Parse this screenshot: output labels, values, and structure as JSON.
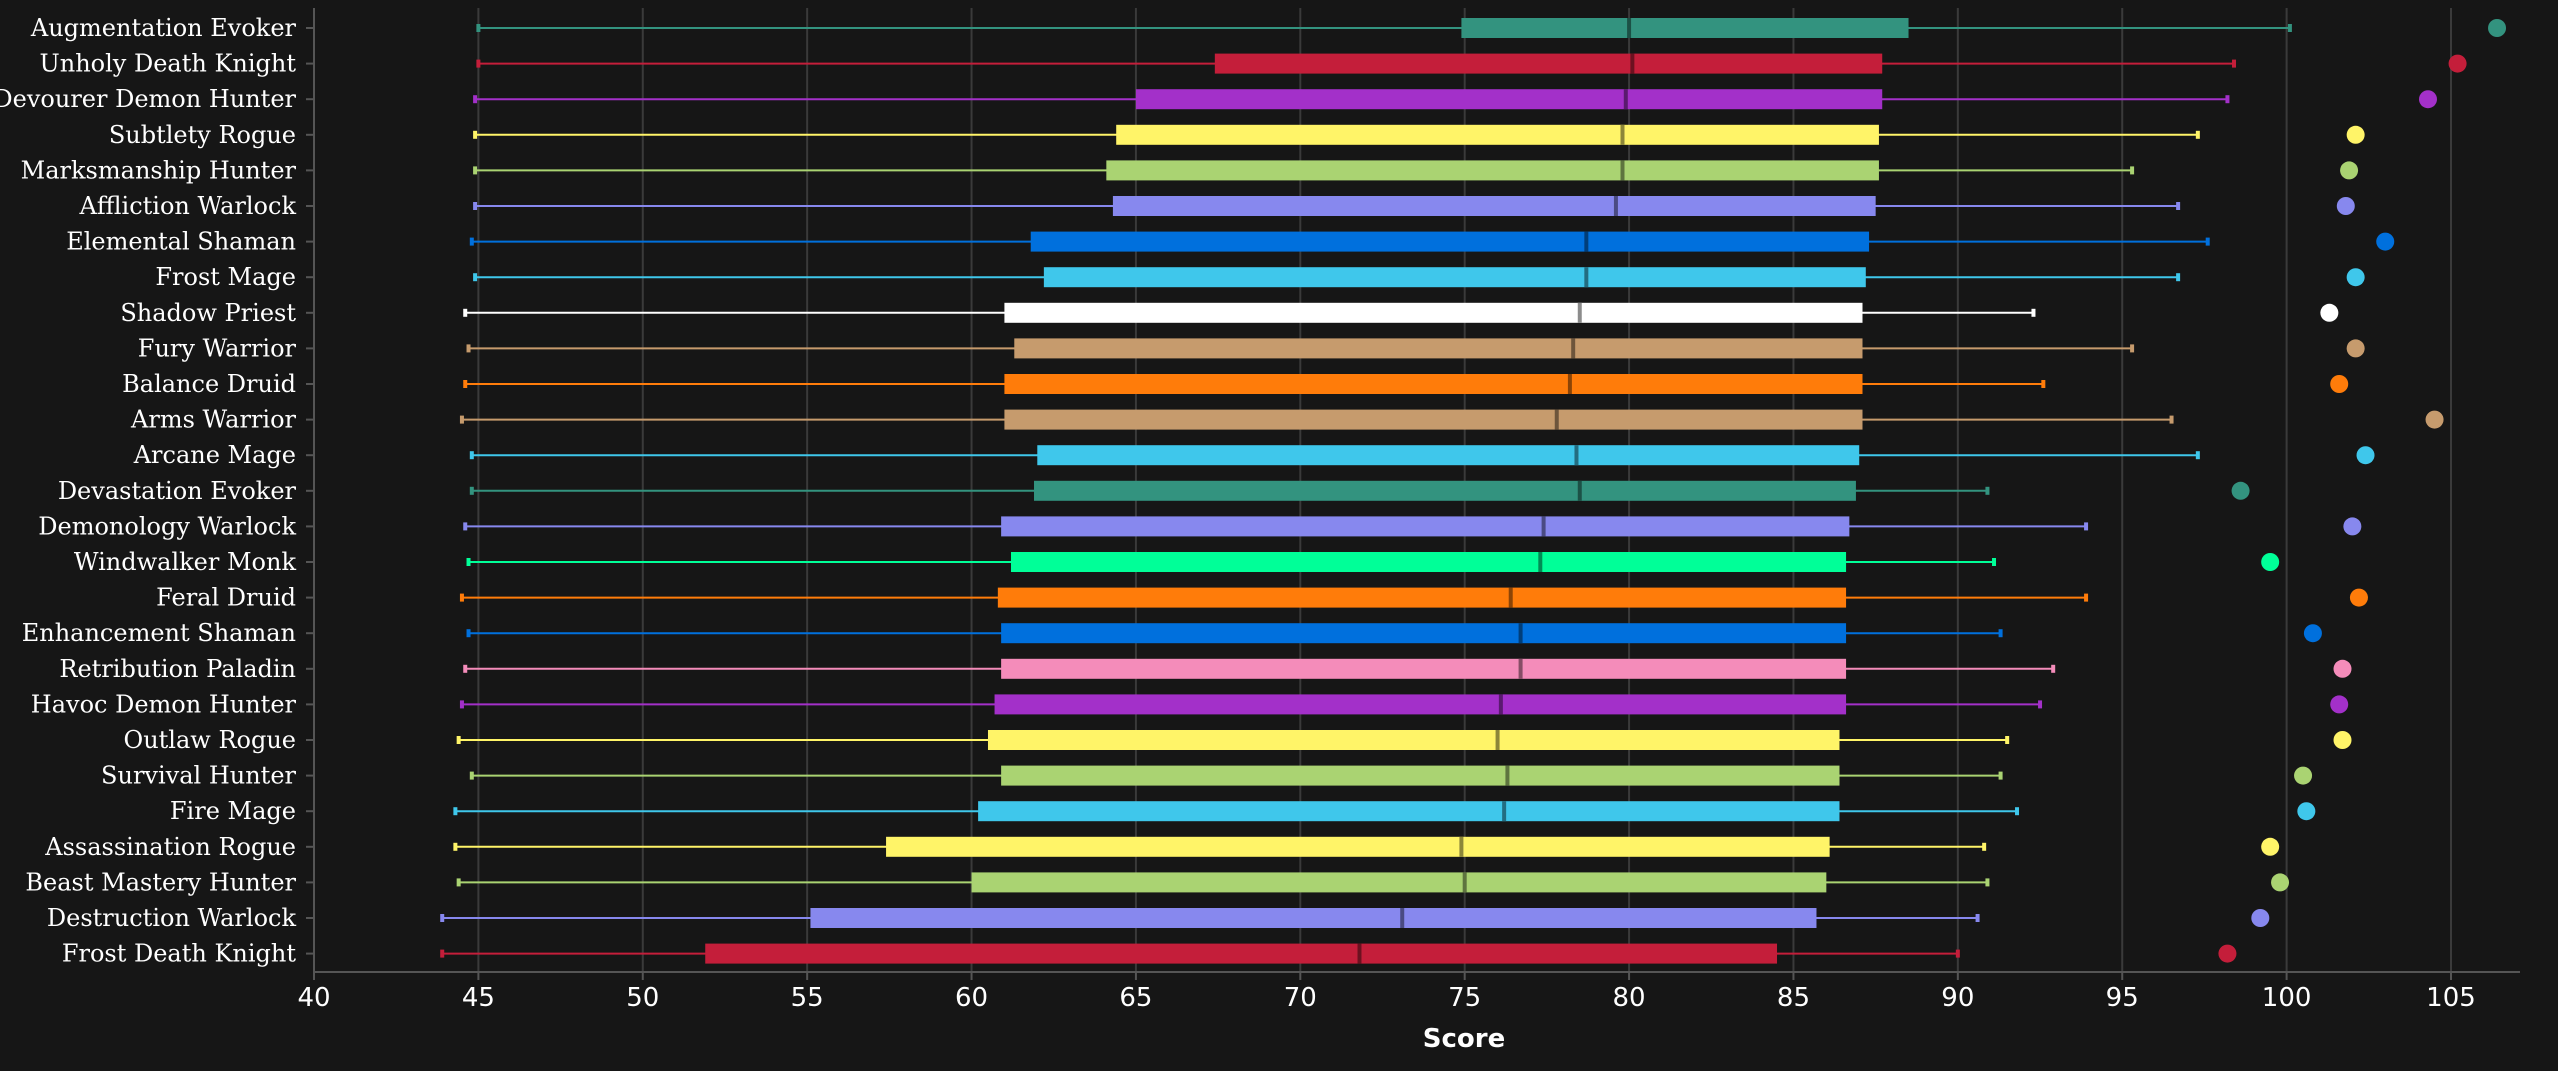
{
  "chart_data": {
    "type": "boxplot",
    "xlabel": "Score",
    "xlim": [
      40,
      107
    ],
    "xticks": [
      40,
      45,
      50,
      55,
      60,
      65,
      70,
      75,
      80,
      85,
      90,
      95,
      100,
      105
    ],
    "grid": true,
    "legend": "none",
    "series": [
      {
        "name": "Augmentation Evoker",
        "color": "#33937f",
        "min": 45.0,
        "q1": 74.9,
        "median": 80.0,
        "q3": 88.5,
        "max": 100.1,
        "outlier": 106.4
      },
      {
        "name": "Unholy Death Knight",
        "color": "#c41e3a",
        "min": 45.0,
        "q1": 67.4,
        "median": 80.1,
        "q3": 87.7,
        "max": 98.4,
        "outlier": 105.2
      },
      {
        "name": "Devourer Demon Hunter",
        "color": "#a330c9",
        "min": 44.9,
        "q1": 65.0,
        "median": 79.9,
        "q3": 87.7,
        "max": 98.2,
        "outlier": 104.3
      },
      {
        "name": "Subtlety Rogue",
        "color": "#fff468",
        "min": 44.9,
        "q1": 64.4,
        "median": 79.8,
        "q3": 87.6,
        "max": 97.3,
        "outlier": 102.1
      },
      {
        "name": "Marksmanship Hunter",
        "color": "#aad372",
        "min": 44.9,
        "q1": 64.1,
        "median": 79.8,
        "q3": 87.6,
        "max": 95.3,
        "outlier": 101.9
      },
      {
        "name": "Affliction Warlock",
        "color": "#8788ee",
        "min": 44.9,
        "q1": 64.3,
        "median": 79.6,
        "q3": 87.5,
        "max": 96.7,
        "outlier": 101.8
      },
      {
        "name": "Elemental Shaman",
        "color": "#0070dd",
        "min": 44.8,
        "q1": 61.8,
        "median": 78.7,
        "q3": 87.3,
        "max": 97.6,
        "outlier": 103.0
      },
      {
        "name": "Frost Mage",
        "color": "#3fc7eb",
        "min": 44.9,
        "q1": 62.2,
        "median": 78.7,
        "q3": 87.2,
        "max": 96.7,
        "outlier": 102.1
      },
      {
        "name": "Shadow Priest",
        "color": "#ffffff",
        "min": 44.6,
        "q1": 61.0,
        "median": 78.5,
        "q3": 87.1,
        "max": 92.3,
        "outlier": 101.3
      },
      {
        "name": "Fury Warrior",
        "color": "#c69b6d",
        "min": 44.7,
        "q1": 61.3,
        "median": 78.3,
        "q3": 87.1,
        "max": 95.3,
        "outlier": 102.1
      },
      {
        "name": "Balance Druid",
        "color": "#ff7c0a",
        "min": 44.6,
        "q1": 61.0,
        "median": 78.2,
        "q3": 87.1,
        "max": 92.6,
        "outlier": 101.6
      },
      {
        "name": "Arms Warrior",
        "color": "#c69b6d",
        "min": 44.5,
        "q1": 61.0,
        "median": 77.8,
        "q3": 87.1,
        "max": 96.5,
        "outlier": 104.5
      },
      {
        "name": "Arcane Mage",
        "color": "#3fc7eb",
        "min": 44.8,
        "q1": 62.0,
        "median": 78.4,
        "q3": 87.0,
        "max": 97.3,
        "outlier": 102.4
      },
      {
        "name": "Devastation Evoker",
        "color": "#33937f",
        "min": 44.8,
        "q1": 61.9,
        "median": 78.5,
        "q3": 86.9,
        "max": 90.9,
        "outlier": 98.6
      },
      {
        "name": "Demonology Warlock",
        "color": "#8788ee",
        "min": 44.6,
        "q1": 60.9,
        "median": 77.4,
        "q3": 86.7,
        "max": 93.9,
        "outlier": 102.0
      },
      {
        "name": "Windwalker Monk",
        "color": "#00ff98",
        "min": 44.7,
        "q1": 61.2,
        "median": 77.3,
        "q3": 86.6,
        "max": 91.1,
        "outlier": 99.5
      },
      {
        "name": "Feral Druid",
        "color": "#ff7c0a",
        "min": 44.5,
        "q1": 60.8,
        "median": 76.4,
        "q3": 86.6,
        "max": 93.9,
        "outlier": 102.2
      },
      {
        "name": "Enhancement Shaman",
        "color": "#0070dd",
        "min": 44.7,
        "q1": 60.9,
        "median": 76.7,
        "q3": 86.6,
        "max": 91.3,
        "outlier": 100.8
      },
      {
        "name": "Retribution Paladin",
        "color": "#f48cba",
        "min": 44.6,
        "q1": 60.9,
        "median": 76.7,
        "q3": 86.6,
        "max": 92.9,
        "outlier": 101.7
      },
      {
        "name": "Havoc Demon Hunter",
        "color": "#a330c9",
        "min": 44.5,
        "q1": 60.7,
        "median": 76.1,
        "q3": 86.6,
        "max": 92.5,
        "outlier": 101.6
      },
      {
        "name": "Outlaw Rogue",
        "color": "#fff468",
        "min": 44.4,
        "q1": 60.5,
        "median": 76.0,
        "q3": 86.4,
        "max": 91.5,
        "outlier": 101.7
      },
      {
        "name": "Survival Hunter",
        "color": "#aad372",
        "min": 44.8,
        "q1": 60.9,
        "median": 76.3,
        "q3": 86.4,
        "max": 91.3,
        "outlier": 100.5
      },
      {
        "name": "Fire Mage",
        "color": "#3fc7eb",
        "min": 44.3,
        "q1": 60.2,
        "median": 76.2,
        "q3": 86.4,
        "max": 91.8,
        "outlier": 100.6
      },
      {
        "name": "Assassination Rogue",
        "color": "#fff468",
        "min": 44.3,
        "q1": 57.4,
        "median": 74.9,
        "q3": 86.1,
        "max": 90.8,
        "outlier": 99.5
      },
      {
        "name": "Beast Mastery Hunter",
        "color": "#aad372",
        "min": 44.4,
        "q1": 60.0,
        "median": 75.0,
        "q3": 86.0,
        "max": 90.9,
        "outlier": 99.8
      },
      {
        "name": "Destruction Warlock",
        "color": "#8788ee",
        "min": 43.9,
        "q1": 55.1,
        "median": 73.1,
        "q3": 85.7,
        "max": 90.6,
        "outlier": 99.2
      },
      {
        "name": "Frost Death Knight",
        "color": "#c41e3a",
        "min": 43.9,
        "q1": 51.9,
        "median": 71.8,
        "q3": 84.5,
        "max": 90.0,
        "outlier": 98.2
      }
    ]
  },
  "colors": {
    "background": "#161616",
    "grid": "#3a3a3a",
    "axis": "#555555",
    "text": "#ffffff"
  }
}
